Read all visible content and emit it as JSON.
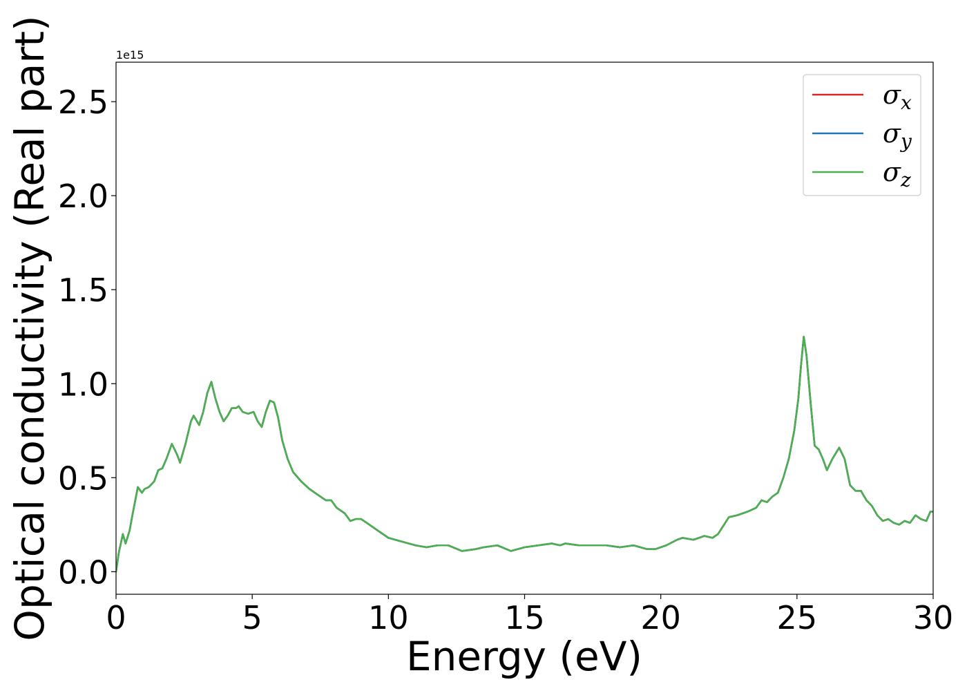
{
  "chart_data": {
    "type": "line",
    "xlabel": "Energy (eV)",
    "ylabel": "Optical conductivity (Real part)",
    "y_scale_label": "1e15",
    "xlim": [
      0,
      30
    ],
    "ylim": [
      -0.12,
      2.71
    ],
    "x_ticks": [
      0,
      5,
      10,
      15,
      20,
      25,
      30
    ],
    "x_tick_labels": [
      "0",
      "5",
      "10",
      "15",
      "20",
      "25",
      "30"
    ],
    "y_ticks": [
      0.0,
      0.5,
      1.0,
      1.5,
      2.0,
      2.5
    ],
    "y_tick_labels": [
      "0.0",
      "0.5",
      "1.0",
      "1.5",
      "2.0",
      "2.5"
    ],
    "grid": false,
    "legend_position": "top-right",
    "x": [
      0,
      0.1,
      0.25,
      0.35,
      0.5,
      0.6,
      0.8,
      0.95,
      1.05,
      1.2,
      1.4,
      1.55,
      1.7,
      1.85,
      2.05,
      2.25,
      2.35,
      2.55,
      2.75,
      2.85,
      3.05,
      3.2,
      3.35,
      3.5,
      3.65,
      3.8,
      3.95,
      4.1,
      4.25,
      4.4,
      4.5,
      4.65,
      4.85,
      5.05,
      5.2,
      5.35,
      5.5,
      5.65,
      5.8,
      5.95,
      6.1,
      6.3,
      6.5,
      6.8,
      7.1,
      7.4,
      7.7,
      7.9,
      8.1,
      8.4,
      8.6,
      8.8,
      9.0,
      9.2,
      9.5,
      10.0,
      10.5,
      11.0,
      11.4,
      11.8,
      12.2,
      12.7,
      13.2,
      13.5,
      14.0,
      14.5,
      15.0,
      15.5,
      16.0,
      16.3,
      16.5,
      17.0,
      17.5,
      18.0,
      18.5,
      19.0,
      19.5,
      19.8,
      20.2,
      20.6,
      20.8,
      21.2,
      21.6,
      21.9,
      22.1,
      22.5,
      22.8,
      23.2,
      23.5,
      23.7,
      23.9,
      24.1,
      24.3,
      24.5,
      24.7,
      24.9,
      25.05,
      25.15,
      25.25,
      25.35,
      25.5,
      25.65,
      25.8,
      25.95,
      26.1,
      26.3,
      26.55,
      26.75,
      26.95,
      27.15,
      27.35,
      27.55,
      27.75,
      27.95,
      28.15,
      28.35,
      28.55,
      28.75,
      28.95,
      29.15,
      29.35,
      29.55,
      29.75,
      29.9,
      30.0
    ],
    "series": [
      {
        "name": "σx",
        "color": "#d62728",
        "values": [
          0.0,
          0.1,
          0.2,
          0.15,
          0.22,
          0.3,
          0.45,
          0.42,
          0.44,
          0.45,
          0.48,
          0.54,
          0.55,
          0.6,
          0.68,
          0.62,
          0.58,
          0.68,
          0.8,
          0.83,
          0.78,
          0.85,
          0.95,
          1.01,
          0.92,
          0.85,
          0.8,
          0.83,
          0.87,
          0.87,
          0.88,
          0.85,
          0.84,
          0.85,
          0.8,
          0.77,
          0.85,
          0.91,
          0.9,
          0.82,
          0.7,
          0.6,
          0.53,
          0.48,
          0.44,
          0.41,
          0.38,
          0.38,
          0.34,
          0.31,
          0.27,
          0.28,
          0.28,
          0.26,
          0.23,
          0.18,
          0.16,
          0.14,
          0.13,
          0.14,
          0.14,
          0.11,
          0.12,
          0.13,
          0.14,
          0.11,
          0.13,
          0.14,
          0.15,
          0.14,
          0.15,
          0.14,
          0.14,
          0.14,
          0.13,
          0.14,
          0.12,
          0.12,
          0.14,
          0.17,
          0.18,
          0.17,
          0.19,
          0.18,
          0.2,
          0.29,
          0.3,
          0.32,
          0.34,
          0.38,
          0.37,
          0.4,
          0.42,
          0.5,
          0.6,
          0.75,
          0.92,
          1.1,
          1.25,
          1.15,
          0.9,
          0.67,
          0.65,
          0.6,
          0.54,
          0.6,
          0.66,
          0.6,
          0.46,
          0.43,
          0.43,
          0.38,
          0.35,
          0.3,
          0.27,
          0.28,
          0.26,
          0.25,
          0.27,
          0.26,
          0.3,
          0.28,
          0.27,
          0.32,
          0.32
        ]
      },
      {
        "name": "σy",
        "color": "#1f77b4",
        "values": [
          0.0,
          0.1,
          0.2,
          0.15,
          0.22,
          0.3,
          0.45,
          0.42,
          0.44,
          0.45,
          0.48,
          0.54,
          0.55,
          0.6,
          0.68,
          0.62,
          0.58,
          0.68,
          0.8,
          0.83,
          0.78,
          0.85,
          0.95,
          1.01,
          0.92,
          0.85,
          0.8,
          0.83,
          0.87,
          0.87,
          0.88,
          0.85,
          0.84,
          0.85,
          0.8,
          0.77,
          0.85,
          0.91,
          0.9,
          0.82,
          0.7,
          0.6,
          0.53,
          0.48,
          0.44,
          0.41,
          0.38,
          0.38,
          0.34,
          0.31,
          0.27,
          0.28,
          0.28,
          0.26,
          0.23,
          0.18,
          0.16,
          0.14,
          0.13,
          0.14,
          0.14,
          0.11,
          0.12,
          0.13,
          0.14,
          0.11,
          0.13,
          0.14,
          0.15,
          0.14,
          0.15,
          0.14,
          0.14,
          0.14,
          0.13,
          0.14,
          0.12,
          0.12,
          0.14,
          0.17,
          0.18,
          0.17,
          0.19,
          0.18,
          0.2,
          0.29,
          0.3,
          0.32,
          0.34,
          0.38,
          0.37,
          0.4,
          0.42,
          0.5,
          0.6,
          0.75,
          0.92,
          1.1,
          1.25,
          1.15,
          0.9,
          0.67,
          0.65,
          0.6,
          0.54,
          0.6,
          0.66,
          0.6,
          0.46,
          0.43,
          0.43,
          0.38,
          0.35,
          0.3,
          0.27,
          0.28,
          0.26,
          0.25,
          0.27,
          0.26,
          0.3,
          0.28,
          0.27,
          0.32,
          0.32
        ]
      },
      {
        "name": "σz",
        "color": "#4caf50",
        "values": [
          0.0,
          0.1,
          0.2,
          0.15,
          0.22,
          0.3,
          0.45,
          0.42,
          0.44,
          0.45,
          0.48,
          0.54,
          0.55,
          0.6,
          0.68,
          0.62,
          0.58,
          0.68,
          0.8,
          0.83,
          0.78,
          0.85,
          0.95,
          1.01,
          0.92,
          0.85,
          0.8,
          0.83,
          0.87,
          0.87,
          0.88,
          0.85,
          0.84,
          0.85,
          0.8,
          0.77,
          0.85,
          0.91,
          0.9,
          0.82,
          0.7,
          0.6,
          0.53,
          0.48,
          0.44,
          0.41,
          0.38,
          0.38,
          0.34,
          0.31,
          0.27,
          0.28,
          0.28,
          0.26,
          0.23,
          0.18,
          0.16,
          0.14,
          0.13,
          0.14,
          0.14,
          0.11,
          0.12,
          0.13,
          0.14,
          0.11,
          0.13,
          0.14,
          0.15,
          0.14,
          0.15,
          0.14,
          0.14,
          0.14,
          0.13,
          0.14,
          0.12,
          0.12,
          0.14,
          0.17,
          0.18,
          0.17,
          0.19,
          0.18,
          0.2,
          0.29,
          0.3,
          0.32,
          0.34,
          0.38,
          0.37,
          0.4,
          0.42,
          0.5,
          0.6,
          0.75,
          0.92,
          1.1,
          1.25,
          1.15,
          0.9,
          0.67,
          0.65,
          0.6,
          0.54,
          0.6,
          0.66,
          0.6,
          0.46,
          0.43,
          0.43,
          0.38,
          0.35,
          0.3,
          0.27,
          0.28,
          0.26,
          0.25,
          0.27,
          0.26,
          0.3,
          0.28,
          0.27,
          0.32,
          0.32
        ]
      }
    ]
  }
}
